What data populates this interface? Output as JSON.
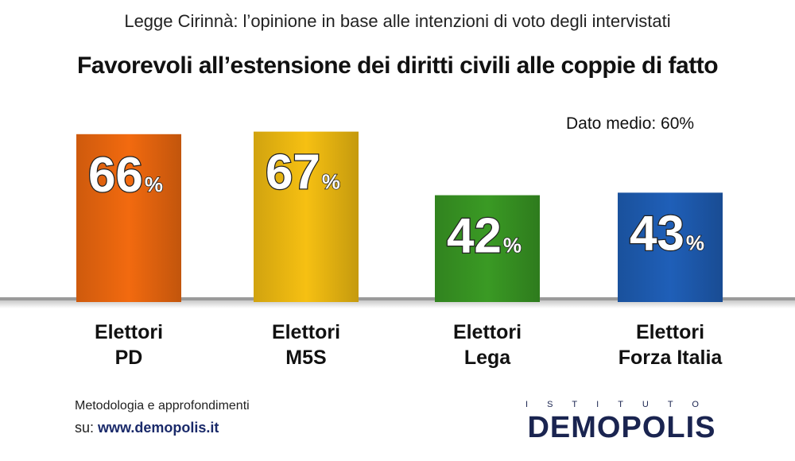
{
  "header": {
    "subtitle": "Legge Cirinnà: l’opinione in base alle intenzioni di voto degli intervistati",
    "title": "Favorevoli all’estensione dei diritti civili alle coppie di fatto",
    "average_label": "Dato medio: 60%"
  },
  "chart_data": {
    "type": "bar",
    "title": "Favorevoli all’estensione dei diritti civili alle coppie di fatto",
    "subtitle": "Legge Cirinnà: l’opinione in base alle intenzioni di voto degli intervistati",
    "categories": [
      [
        "Elettori",
        "PD"
      ],
      [
        "Elettori",
        "M5S"
      ],
      [
        "Elettori",
        "Lega"
      ],
      [
        "Elettori",
        "Forza Italia"
      ]
    ],
    "values": [
      66,
      67,
      42,
      43
    ],
    "unit": "%",
    "colors": [
      "#f26a0f",
      "#f6c012",
      "#3a9a24",
      "#1f5fb8"
    ],
    "average": 60,
    "ylim": [
      0,
      100
    ],
    "grid": false
  },
  "footer": {
    "method_line1": "Metodologia e approfondimenti",
    "method_prefix": "su: ",
    "method_url": "www.demopolis.it",
    "logo_small": "ISTITUTO",
    "logo_big": "DEMOPOLIS"
  }
}
